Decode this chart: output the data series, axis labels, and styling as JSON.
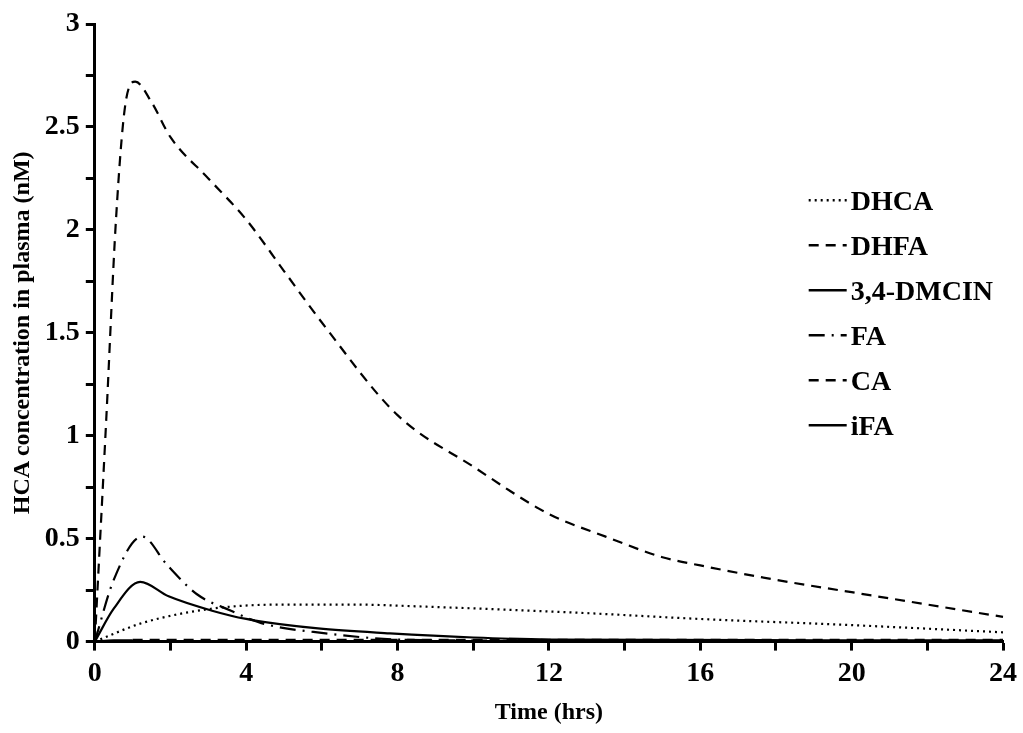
{
  "chart_data": {
    "type": "line",
    "xlabel": "Time (hrs)",
    "ylabel": "HCA concentration in plasma (nM)",
    "xlim": [
      0,
      24
    ],
    "ylim": [
      0,
      3
    ],
    "xticks": [
      0,
      {
        "value": 2,
        "label": null
      },
      4,
      {
        "value": 6,
        "label": null
      },
      8,
      {
        "value": 10,
        "label": null
      },
      12,
      {
        "value": 14,
        "label": null
      },
      16,
      {
        "value": 18,
        "label": null
      },
      20,
      {
        "value": 22,
        "label": null
      },
      24
    ],
    "yticks": [
      0,
      {
        "value": 0.25,
        "label": null
      },
      0.5,
      {
        "value": 0.75,
        "label": null
      },
      1,
      {
        "value": 1.25,
        "label": null
      },
      1.5,
      {
        "value": 1.75,
        "label": null
      },
      2,
      {
        "value": 2.25,
        "label": null
      },
      2.5,
      {
        "value": 2.75,
        "label": null
      },
      3
    ],
    "grid": false,
    "legend": "right",
    "marker": "none",
    "series": [
      {
        "name": "DHCA",
        "color": "#000000",
        "line_style": "dotted",
        "x": [
          0,
          1.25,
          3.1,
          5,
          6.8,
          8.7,
          12.8,
          16,
          20,
          24
        ],
        "values": [
          0,
          0.09,
          0.16,
          0.18,
          0.18,
          0.17,
          0.14,
          0.11,
          0.08,
          0.045
        ]
      },
      {
        "name": "DHFA",
        "color": "#000000",
        "line_style": "dashed",
        "x": [
          1,
          24
        ],
        "values": [
          0.008,
          0.008
        ]
      },
      {
        "name": "3,4-DMCIN",
        "color": "#000000",
        "line_style": "solid",
        "x": [
          0,
          0.5,
          1
        ],
        "values": [
          0,
          0.006,
          0.006
        ]
      },
      {
        "name": "FA",
        "color": "#000000",
        "line_style": "dashdot",
        "x": [
          0,
          0.5,
          1.25,
          1.9,
          2.7,
          3.6,
          4.4,
          6.1,
          8,
          10,
          12,
          24
        ],
        "values": [
          0,
          0.3,
          0.51,
          0.375,
          0.23,
          0.15,
          0.09,
          0.04,
          0.01,
          0.005,
          0.003,
          0.003
        ]
      },
      {
        "name": "CA",
        "color": "#000000",
        "line_style": "dashed",
        "x": [
          0,
          0.3,
          0.56,
          0.8,
          1.07,
          1.5,
          2,
          3,
          4,
          5,
          6,
          8,
          10,
          12,
          13.5,
          15,
          16,
          18,
          20,
          22,
          24
        ],
        "values": [
          0,
          1.07,
          2.05,
          2.6,
          2.72,
          2.62,
          2.45,
          2.25,
          2.05,
          1.8,
          1.55,
          1.1,
          0.85,
          0.62,
          0.51,
          0.41,
          0.37,
          0.3,
          0.24,
          0.18,
          0.12
        ]
      },
      {
        "name": "iFA",
        "color": "#000000",
        "line_style": "solid",
        "x": [
          0,
          0.5,
          1.2,
          1.95,
          3.1,
          4,
          5.9,
          7.8,
          10,
          12,
          24
        ],
        "values": [
          0,
          0.16,
          0.29,
          0.22,
          0.15,
          0.11,
          0.064,
          0.04,
          0.02,
          0.01,
          0.006
        ]
      }
    ]
  }
}
